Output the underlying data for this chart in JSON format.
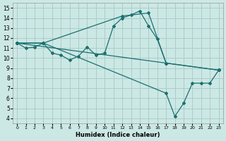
{
  "xlabel": "Humidex (Indice chaleur)",
  "bg_color": "#cce8e4",
  "grid_color": "#aacccc",
  "line_color": "#1a7070",
  "xlim": [
    -0.5,
    23.5
  ],
  "ylim": [
    3.5,
    15.5
  ],
  "xticks": [
    0,
    1,
    2,
    3,
    4,
    5,
    6,
    7,
    8,
    9,
    10,
    11,
    12,
    13,
    14,
    15,
    16,
    17,
    18,
    19,
    20,
    21,
    22,
    23
  ],
  "yticks": [
    4,
    5,
    6,
    7,
    8,
    9,
    10,
    11,
    12,
    13,
    14,
    15
  ],
  "lines": [
    {
      "x": [
        0,
        1,
        2,
        3,
        4,
        5,
        6,
        7,
        8,
        9,
        10,
        11,
        12,
        13,
        14,
        15,
        16,
        17
      ],
      "y": [
        11.5,
        11.0,
        11.1,
        11.5,
        10.5,
        10.3,
        9.8,
        10.2,
        11.1,
        10.3,
        10.5,
        13.2,
        14.0,
        14.3,
        14.7,
        13.2,
        11.9,
        9.5
      ]
    },
    {
      "x": [
        0,
        3,
        12,
        15,
        17,
        23
      ],
      "y": [
        11.5,
        11.5,
        14.2,
        14.5,
        9.5,
        8.8
      ]
    },
    {
      "x": [
        0,
        3,
        17,
        18,
        19,
        20,
        21,
        22,
        23
      ],
      "y": [
        11.5,
        11.5,
        6.5,
        4.2,
        5.5,
        7.5,
        7.5,
        7.5,
        8.8
      ]
    },
    {
      "x": [
        0,
        23
      ],
      "y": [
        11.5,
        8.8
      ]
    }
  ]
}
